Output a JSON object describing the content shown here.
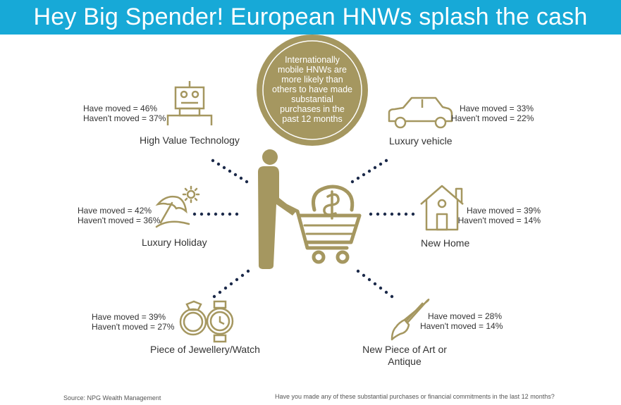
{
  "title": "Hey Big Spender! European HNWs splash the cash",
  "center_note": "Internationally mobile HNWs are more likely than others to have made substantial purchases in the past 12 months",
  "categories": [
    {
      "id": "tech",
      "name": "High Value Technology",
      "moved": "Have moved = 46%",
      "not_moved": "Haven't moved = 37%",
      "icon": "robot-icon"
    },
    {
      "id": "vehicle",
      "name": "Luxury vehicle",
      "moved": "Have moved = 33%",
      "not_moved": "Haven't moved = 22%",
      "icon": "car-icon"
    },
    {
      "id": "holiday",
      "name": "Luxury Holiday",
      "moved": "Have moved = 42%",
      "not_moved": "Haven't moved = 36%",
      "icon": "beach-umbrella-icon"
    },
    {
      "id": "home",
      "name": "New Home",
      "moved": "Have moved = 39%",
      "not_moved": "Haven't moved = 14%",
      "icon": "house-icon"
    },
    {
      "id": "jewellery",
      "name": "Piece of Jewellery/Watch",
      "moved": "Have moved = 39%",
      "not_moved": "Haven't moved = 27%",
      "icon": "ring-watch-icon"
    },
    {
      "id": "art",
      "name_line1": "New Piece of Art or",
      "name_line2": "Antique",
      "moved": "Have moved = 28%",
      "not_moved": "Haven't moved = 14%",
      "icon": "paintbrush-icon"
    }
  ],
  "footer": {
    "source": "Source: NPG Wealth Management",
    "question": "Have you made any of these substantial purchases or financial commitments in the last 12 months?"
  },
  "colors": {
    "header": "#17a9d7",
    "gold": "#a59760",
    "dots": "#1c2a4a"
  }
}
